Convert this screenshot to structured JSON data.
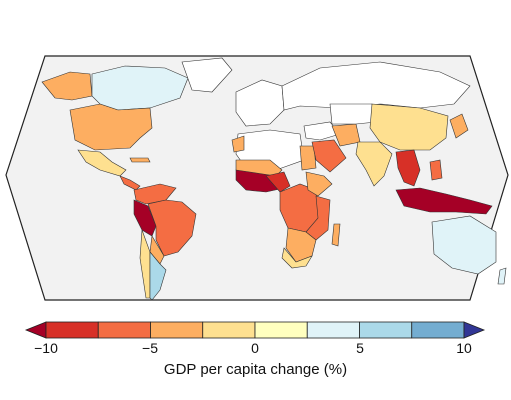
{
  "legend": {
    "title": "GDP per capita change (%)",
    "ticks": [
      "−10",
      "−5",
      "0",
      "5",
      "10"
    ],
    "range": [
      -10,
      10
    ],
    "bin_step": 2.5,
    "bin_colors": [
      "#d73027",
      "#f46d43",
      "#fdae61",
      "#fee090",
      "#ffffbf",
      "#e0f3f8",
      "#abd9e9",
      "#74add1",
      "#4575b4"
    ],
    "under_color": "#a50026",
    "over_color": "#313695"
  },
  "map": {
    "ocean_color": "#ffffff",
    "land_nodata_color": "#f2f2f2",
    "border_color": "#222222"
  }
}
